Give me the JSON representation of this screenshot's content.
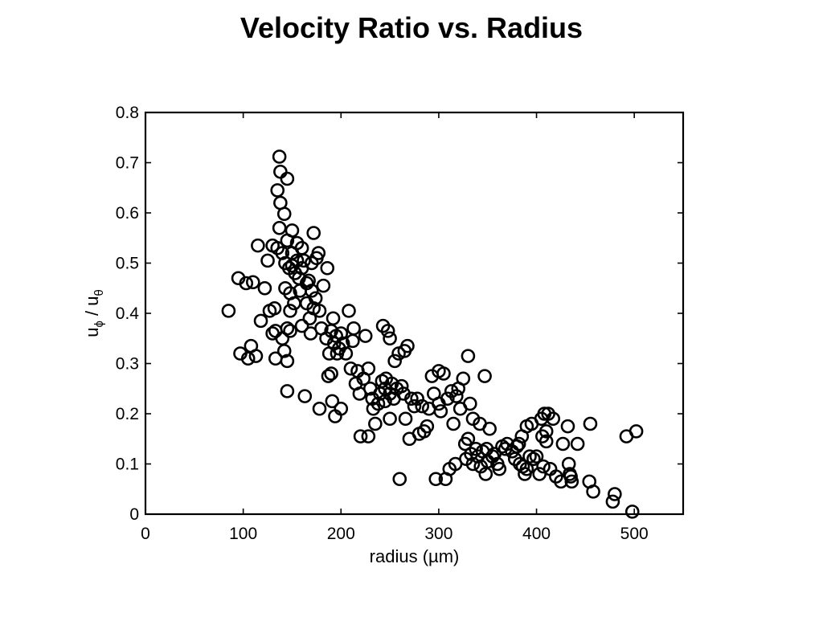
{
  "chart_data": {
    "type": "scatter",
    "title": "Velocity Ratio vs. Radius",
    "xlabel": "radius (µm)",
    "ylabel": {
      "u1": "u",
      "sub1": "ϕ",
      "sep": " / ",
      "u2": "u",
      "sub2": "θ"
    },
    "xlim": [
      0,
      550
    ],
    "ylim": [
      0,
      0.8
    ],
    "xticks": [
      0,
      100,
      200,
      300,
      400,
      500
    ],
    "yticks": [
      0,
      0.1,
      0.2,
      0.3,
      0.4,
      0.5,
      0.6,
      0.7,
      0.8
    ],
    "xtick_labels": [
      "0",
      "100",
      "200",
      "300",
      "400",
      "500"
    ],
    "ytick_labels": [
      "0",
      "0.1",
      "0.2",
      "0.3",
      "0.4",
      "0.5",
      "0.6",
      "0.7",
      "0.8"
    ],
    "grid": false,
    "marker": "open-circle",
    "points": [
      [
        85,
        0.405
      ],
      [
        95,
        0.47
      ],
      [
        97,
        0.32
      ],
      [
        103,
        0.46
      ],
      [
        105,
        0.31
      ],
      [
        108,
        0.335
      ],
      [
        110,
        0.462
      ],
      [
        113,
        0.315
      ],
      [
        115,
        0.535
      ],
      [
        118,
        0.385
      ],
      [
        122,
        0.45
      ],
      [
        125,
        0.505
      ],
      [
        127,
        0.405
      ],
      [
        130,
        0.535
      ],
      [
        130,
        0.36
      ],
      [
        132,
        0.41
      ],
      [
        133,
        0.365
      ],
      [
        133,
        0.31
      ],
      [
        135,
        0.53
      ],
      [
        135,
        0.645
      ],
      [
        137,
        0.57
      ],
      [
        137,
        0.712
      ],
      [
        138,
        0.682
      ],
      [
        138,
        0.62
      ],
      [
        140,
        0.52
      ],
      [
        140,
        0.35
      ],
      [
        142,
        0.598
      ],
      [
        142,
        0.325
      ],
      [
        143,
        0.5
      ],
      [
        143,
        0.45
      ],
      [
        145,
        0.668
      ],
      [
        145,
        0.545
      ],
      [
        145,
        0.37
      ],
      [
        145,
        0.305
      ],
      [
        145,
        0.245
      ],
      [
        147,
        0.49
      ],
      [
        148,
        0.44
      ],
      [
        148,
        0.405
      ],
      [
        148,
        0.365
      ],
      [
        150,
        0.565
      ],
      [
        150,
        0.52
      ],
      [
        150,
        0.495
      ],
      [
        152,
        0.42
      ],
      [
        153,
        0.48
      ],
      [
        155,
        0.54
      ],
      [
        155,
        0.505
      ],
      [
        157,
        0.47
      ],
      [
        158,
        0.445
      ],
      [
        160,
        0.53
      ],
      [
        160,
        0.49
      ],
      [
        160,
        0.375
      ],
      [
        162,
        0.505
      ],
      [
        163,
        0.235
      ],
      [
        165,
        0.46
      ],
      [
        165,
        0.42
      ],
      [
        167,
        0.465
      ],
      [
        168,
        0.39
      ],
      [
        169,
        0.36
      ],
      [
        170,
        0.5
      ],
      [
        170,
        0.445
      ],
      [
        172,
        0.56
      ],
      [
        172,
        0.41
      ],
      [
        174,
        0.43
      ],
      [
        175,
        0.51
      ],
      [
        177,
        0.52
      ],
      [
        178,
        0.405
      ],
      [
        178,
        0.21
      ],
      [
        180,
        0.37
      ],
      [
        182,
        0.455
      ],
      [
        185,
        0.35
      ],
      [
        186,
        0.49
      ],
      [
        187,
        0.275
      ],
      [
        188,
        0.32
      ],
      [
        190,
        0.365
      ],
      [
        190,
        0.28
      ],
      [
        191,
        0.225
      ],
      [
        192,
        0.39
      ],
      [
        193,
        0.34
      ],
      [
        194,
        0.195
      ],
      [
        195,
        0.355
      ],
      [
        196,
        0.32
      ],
      [
        198,
        0.33
      ],
      [
        200,
        0.36
      ],
      [
        200,
        0.21
      ],
      [
        202,
        0.34
      ],
      [
        205,
        0.32
      ],
      [
        208,
        0.405
      ],
      [
        210,
        0.29
      ],
      [
        212,
        0.345
      ],
      [
        213,
        0.37
      ],
      [
        215,
        0.26
      ],
      [
        217,
        0.285
      ],
      [
        219,
        0.24
      ],
      [
        220,
        0.155
      ],
      [
        223,
        0.27
      ],
      [
        225,
        0.355
      ],
      [
        228,
        0.29
      ],
      [
        228,
        0.155
      ],
      [
        230,
        0.25
      ],
      [
        232,
        0.23
      ],
      [
        233,
        0.21
      ],
      [
        235,
        0.18
      ],
      [
        238,
        0.22
      ],
      [
        240,
        0.24
      ],
      [
        242,
        0.265
      ],
      [
        243,
        0.375
      ],
      [
        245,
        0.25
      ],
      [
        245,
        0.225
      ],
      [
        246,
        0.27
      ],
      [
        248,
        0.365
      ],
      [
        250,
        0.35
      ],
      [
        250,
        0.24
      ],
      [
        250,
        0.19
      ],
      [
        252,
        0.26
      ],
      [
        254,
        0.23
      ],
      [
        255,
        0.305
      ],
      [
        257,
        0.25
      ],
      [
        259,
        0.32
      ],
      [
        260,
        0.07
      ],
      [
        262,
        0.255
      ],
      [
        264,
        0.24
      ],
      [
        265,
        0.325
      ],
      [
        266,
        0.19
      ],
      [
        268,
        0.335
      ],
      [
        270,
        0.15
      ],
      [
        272,
        0.23
      ],
      [
        275,
        0.215
      ],
      [
        278,
        0.23
      ],
      [
        280,
        0.16
      ],
      [
        283,
        0.215
      ],
      [
        285,
        0.165
      ],
      [
        288,
        0.175
      ],
      [
        290,
        0.21
      ],
      [
        293,
        0.275
      ],
      [
        295,
        0.24
      ],
      [
        297,
        0.07
      ],
      [
        300,
        0.285
      ],
      [
        300,
        0.22
      ],
      [
        302,
        0.205
      ],
      [
        305,
        0.28
      ],
      [
        307,
        0.07
      ],
      [
        309,
        0.23
      ],
      [
        311,
        0.09
      ],
      [
        313,
        0.245
      ],
      [
        315,
        0.18
      ],
      [
        317,
        0.1
      ],
      [
        318,
        0.235
      ],
      [
        320,
        0.25
      ],
      [
        322,
        0.21
      ],
      [
        325,
        0.27
      ],
      [
        327,
        0.14
      ],
      [
        328,
        0.11
      ],
      [
        330,
        0.315
      ],
      [
        330,
        0.15
      ],
      [
        332,
        0.22
      ],
      [
        333,
        0.12
      ],
      [
        335,
        0.19
      ],
      [
        335,
        0.1
      ],
      [
        338,
        0.13
      ],
      [
        340,
        0.115
      ],
      [
        342,
        0.18
      ],
      [
        343,
        0.095
      ],
      [
        345,
        0.125
      ],
      [
        347,
        0.275
      ],
      [
        348,
        0.08
      ],
      [
        349,
        0.13
      ],
      [
        350,
        0.105
      ],
      [
        352,
        0.17
      ],
      [
        355,
        0.115
      ],
      [
        357,
        0.12
      ],
      [
        360,
        0.1
      ],
      [
        362,
        0.09
      ],
      [
        365,
        0.135
      ],
      [
        368,
        0.13
      ],
      [
        370,
        0.14
      ],
      [
        375,
        0.125
      ],
      [
        378,
        0.11
      ],
      [
        380,
        0.135
      ],
      [
        382,
        0.14
      ],
      [
        383,
        0.1
      ],
      [
        385,
        0.155
      ],
      [
        386,
        0.095
      ],
      [
        388,
        0.08
      ],
      [
        390,
        0.09
      ],
      [
        390,
        0.175
      ],
      [
        393,
        0.115
      ],
      [
        395,
        0.18
      ],
      [
        397,
        0.11
      ],
      [
        400,
        0.115
      ],
      [
        403,
        0.08
      ],
      [
        405,
        0.19
      ],
      [
        406,
        0.155
      ],
      [
        407,
        0.095
      ],
      [
        408,
        0.2
      ],
      [
        410,
        0.165
      ],
      [
        410,
        0.145
      ],
      [
        412,
        0.2
      ],
      [
        414,
        0.09
      ],
      [
        417,
        0.19
      ],
      [
        420,
        0.075
      ],
      [
        425,
        0.065
      ],
      [
        427,
        0.14
      ],
      [
        432,
        0.175
      ],
      [
        433,
        0.1
      ],
      [
        434,
        0.08
      ],
      [
        435,
        0.075
      ],
      [
        436,
        0.065
      ],
      [
        442,
        0.14
      ],
      [
        454,
        0.065
      ],
      [
        455,
        0.18
      ],
      [
        458,
        0.045
      ],
      [
        478,
        0.025
      ],
      [
        480,
        0.04
      ],
      [
        492,
        0.155
      ],
      [
        498,
        0.005
      ],
      [
        502,
        0.165
      ]
    ]
  }
}
